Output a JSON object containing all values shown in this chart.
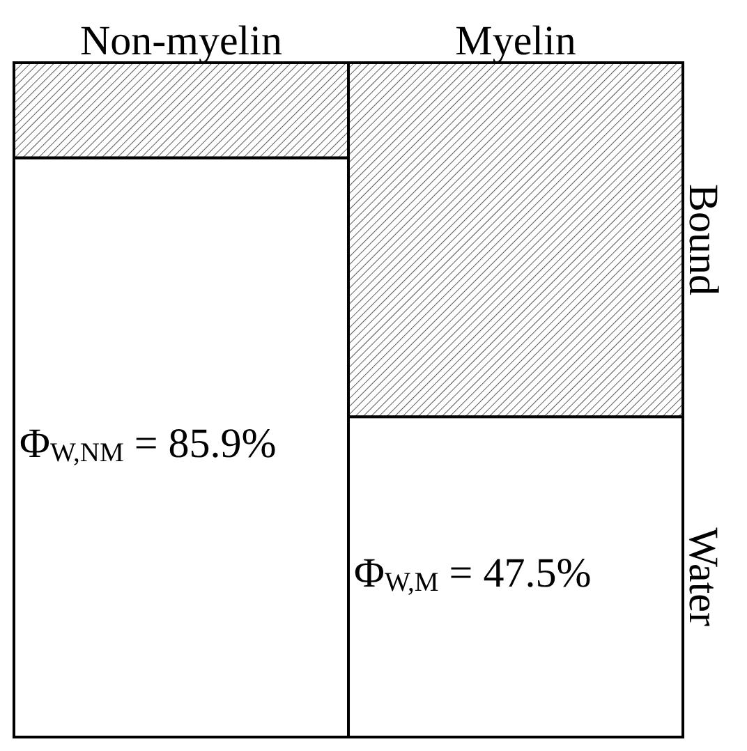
{
  "chart_data": {
    "type": "bar",
    "stacked": true,
    "categories": [
      "Non-myelin",
      "Myelin"
    ],
    "series": [
      {
        "name": "Water",
        "color": "#ffffff",
        "values": [
          85.9,
          47.5
        ],
        "value_labels": [
          "Φ$_{W,NM}$ = 85.9%",
          "Φ$_{W,M}$ = 47.5%"
        ]
      },
      {
        "name": "Bound",
        "color": "#000000",
        "values": [
          14.1,
          52.5
        ]
      }
    ],
    "ylim": [
      0,
      100
    ],
    "tick_labels": "x",
    "legend": false
  }
}
